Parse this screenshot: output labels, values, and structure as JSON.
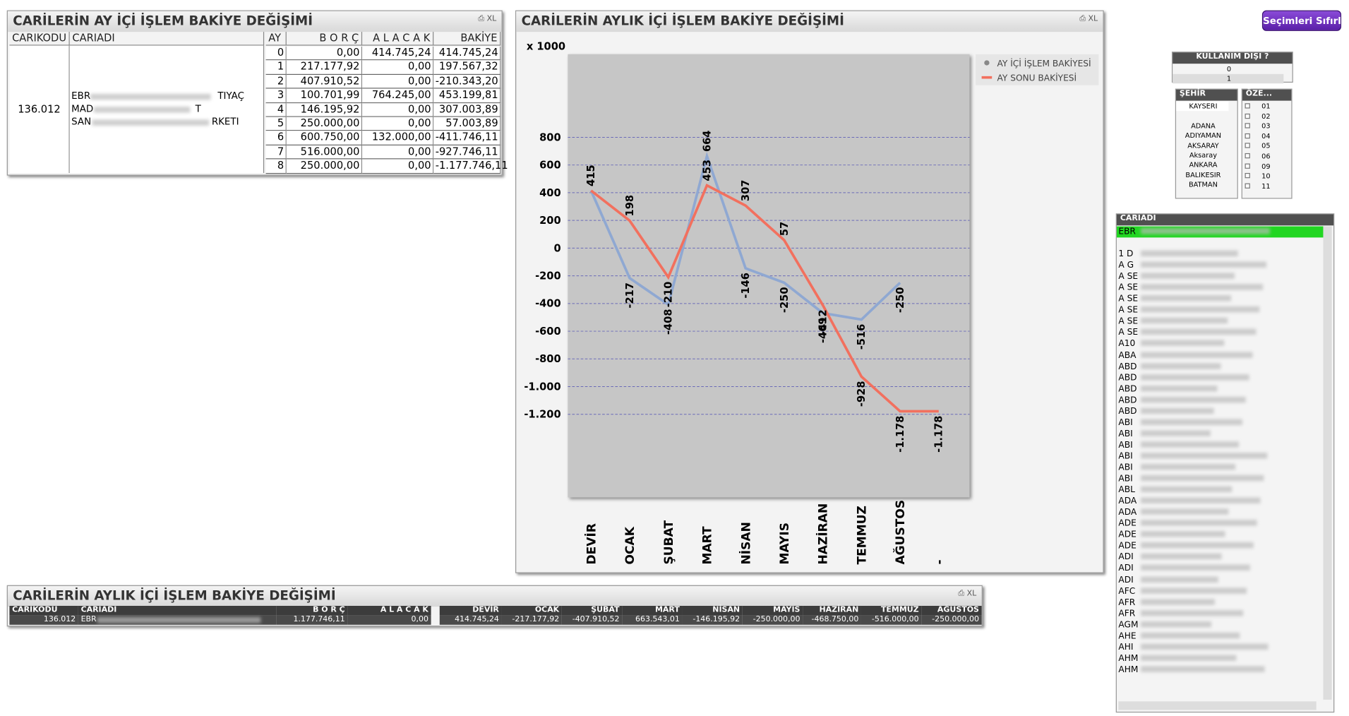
{
  "table1": {
    "title": "CARİLERİN AY İÇİ İŞLEM BAKİYE DEĞİŞİMİ",
    "headers": [
      "CARIKODU",
      "CARIADI",
      "AY",
      "B O R Ç",
      "A L A C A K",
      "BAKİYE"
    ],
    "carikodu": "136.012",
    "cariadi": [
      "EBR",
      "TIYAÇ",
      "MAD",
      "T",
      "SAN",
      "RKETI"
    ],
    "rows": [
      [
        "0",
        "0,00",
        "414.745,24",
        "414.745,24"
      ],
      [
        "1",
        "217.177,92",
        "0,00",
        "197.567,32"
      ],
      [
        "2",
        "407.910,52",
        "0,00",
        "-210.343,20"
      ],
      [
        "3",
        "100.701,99",
        "764.245,00",
        "453.199,81"
      ],
      [
        "4",
        "146.195,92",
        "0,00",
        "307.003,89"
      ],
      [
        "5",
        "250.000,00",
        "0,00",
        "57.003,89"
      ],
      [
        "6",
        "600.750,00",
        "132.000,00",
        "-411.746,11"
      ],
      [
        "7",
        "516.000,00",
        "0,00",
        "-927.746,11"
      ],
      [
        "8",
        "250.000,00",
        "0,00",
        "-1.177.746,11"
      ]
    ]
  },
  "chart_data": {
    "type": "line",
    "title": "CARİLERİN AYLIK İÇİ İŞLEM BAKİYE DEĞİŞİMİ",
    "y_unit": "x 1000",
    "categories": [
      "DEVİR",
      "OCAK",
      "ŞUBAT",
      "MART",
      "NİSAN",
      "MAYIS",
      "HAZİRAN",
      "TEMMUZ",
      "AĞUSTOS",
      "-"
    ],
    "series": [
      {
        "name": "AY İÇİ İŞLEM BAKİYESİ",
        "color": "#8fa8d2",
        "values": [
          415,
          -217,
          -408,
          664,
          -146,
          -250,
          -469,
          -516,
          -250,
          null
        ]
      },
      {
        "name": "AY SONU BAKİYESİ",
        "color": "#f2705e",
        "values": [
          415,
          198,
          -210,
          453,
          307,
          57,
          -412,
          -928,
          -1178,
          -1178
        ],
        "value_labels": [
          "415",
          "198",
          "-210",
          "453",
          "307",
          "57",
          "-412",
          "-928",
          "-1.178",
          "-1.178"
        ]
      }
    ],
    "ylim": [
      -1800,
      1400
    ],
    "yticks": [
      {
        "value": -1200,
        "label": "-1.200"
      },
      {
        "value": -1000,
        "label": "-1.000"
      },
      -800,
      -600,
      -400,
      -200,
      0,
      200,
      400,
      600,
      800
    ],
    "grid": true,
    "legend": "top-right"
  },
  "table3": {
    "title": "CARİLERİN AYLIK İÇİ İŞLEM BAKİYE DEĞİŞİMİ",
    "headers": [
      "CARIKODU",
      "CARIADI",
      "B O R Ç",
      "A L A C A K",
      "DEVİR",
      "OCAK",
      "ŞUBAT",
      "MART",
      "NİSAN",
      "MAYIS",
      "HAZİRAN",
      "TEMMUZ",
      "AĞUSTOS"
    ],
    "row": [
      "136.012",
      "EBR",
      "1.177.746,11",
      "0,00",
      "414.745,24",
      "-217.177,92",
      "-407.910,52",
      "663.543,01",
      "-146.195,92",
      "-250.000,00",
      "-468.750,00",
      "-516.000,00",
      "-250.000,00"
    ]
  },
  "button": "Seçimleri Sıfırla",
  "kullanim": {
    "title": "KULLANIM DIŞI ?",
    "items": [
      "0",
      "1"
    ]
  },
  "sehir": {
    "title": "ŞEHİR",
    "items": [
      "KAYSERI",
      "ADANA",
      "ADIYAMAN",
      "AKSARAY",
      "Aksaray",
      "ANKARA",
      "BALIKESIR",
      "BATMAN"
    ]
  },
  "oze": {
    "title": "ÖZE...",
    "items": [
      "01",
      "02",
      "03",
      "04",
      "05",
      "06",
      "09",
      "10",
      "11"
    ]
  },
  "cariadi_list": {
    "title": "CARIADI",
    "items": [
      "EBR",
      "1 D",
      "A G",
      "A SE",
      "A SE",
      "A SE",
      "A SE",
      "A SE",
      "A SE",
      "A10",
      "ABA",
      "ABD",
      "ABD",
      "ABD",
      "ABD",
      "ABD",
      "ABI",
      "ABI",
      "ABI",
      "ABI",
      "ABI",
      "ABI",
      "ABL",
      "ADA",
      "ADA",
      "ADE",
      "ADE",
      "ADE",
      "ADI",
      "ADI",
      "ADI",
      "AFC",
      "AFR",
      "AFR",
      "AGM",
      "AHE",
      "AHI",
      "AHM",
      "AHM"
    ]
  }
}
